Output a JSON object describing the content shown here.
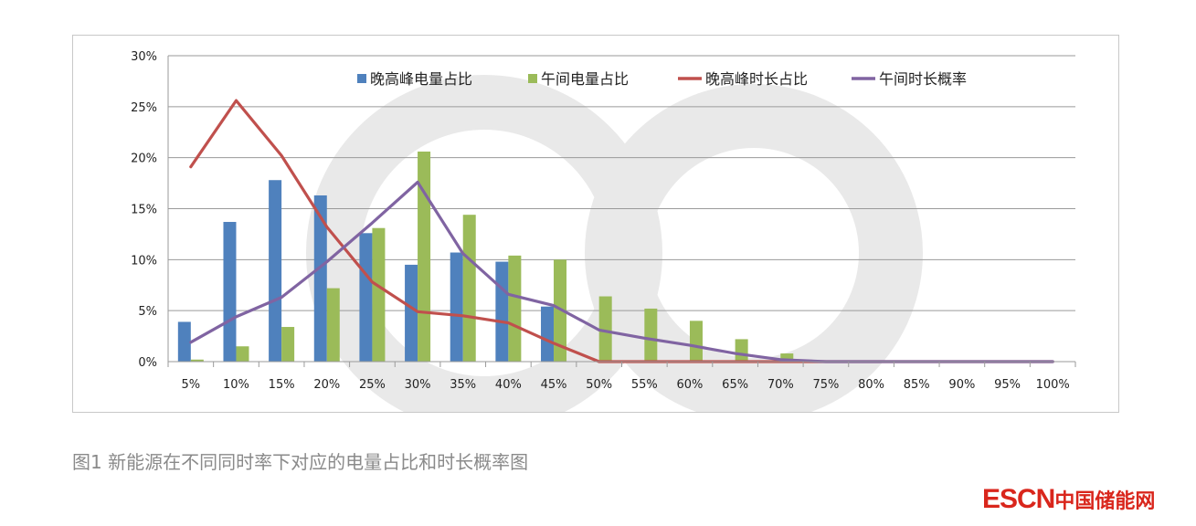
{
  "colors": {
    "evening_energy": "#4f81bd",
    "noon_energy": "#9bbb59",
    "evening_duration": "#c0504d",
    "noon_duration": "#8064a2",
    "grid": "#9a9a9a",
    "axis_text": "#222222",
    "watermark": "#e9e9e9",
    "brand": "#d9261c",
    "caption": "#8a8a8a"
  },
  "caption": "图1 新能源在不同同时率下对应的电量占比和时长概率图",
  "brand": {
    "en": "ESCN",
    "cn": "中国储能网"
  },
  "chart_data": {
    "type": "bar",
    "title": "",
    "xlabel": "",
    "ylabel": "",
    "ylim": [
      0,
      30
    ],
    "yticks": [
      "0%",
      "5%",
      "10%",
      "15%",
      "20%",
      "25%",
      "30%"
    ],
    "grid": true,
    "legend_position": "top-right",
    "categories": [
      "5%",
      "10%",
      "15%",
      "20%",
      "25%",
      "30%",
      "35%",
      "40%",
      "45%",
      "50%",
      "55%",
      "60%",
      "65%",
      "70%",
      "75%",
      "80%",
      "85%",
      "90%",
      "95%",
      "100%"
    ],
    "series": [
      {
        "name": "晚高峰电量占比",
        "kind": "bar",
        "color_key": "evening_energy",
        "values": [
          3.9,
          13.7,
          17.8,
          16.3,
          12.6,
          9.5,
          10.7,
          9.8,
          5.4,
          0,
          0,
          0,
          0,
          0,
          0,
          0,
          0,
          0,
          0,
          0
        ]
      },
      {
        "name": "午间电量占比",
        "kind": "bar",
        "color_key": "noon_energy",
        "values": [
          0.2,
          1.5,
          3.4,
          7.2,
          13.1,
          20.6,
          14.4,
          10.4,
          10.0,
          6.4,
          5.2,
          4.0,
          2.2,
          0.8,
          0,
          0,
          0,
          0,
          0,
          0
        ]
      },
      {
        "name": "晚高峰时长占比",
        "kind": "line",
        "color_key": "evening_duration",
        "values": [
          19.1,
          25.6,
          20.2,
          13.2,
          7.8,
          4.9,
          4.5,
          3.8,
          1.8,
          0,
          0,
          0,
          0,
          0,
          0,
          0,
          0,
          0,
          0,
          0
        ]
      },
      {
        "name": "午间时长概率",
        "kind": "line",
        "color_key": "noon_duration",
        "values": [
          1.9,
          4.4,
          6.3,
          9.8,
          13.6,
          17.6,
          10.6,
          6.6,
          5.5,
          3.1,
          2.3,
          1.6,
          0.8,
          0.2,
          0,
          0,
          0,
          0,
          0,
          0
        ]
      }
    ]
  }
}
